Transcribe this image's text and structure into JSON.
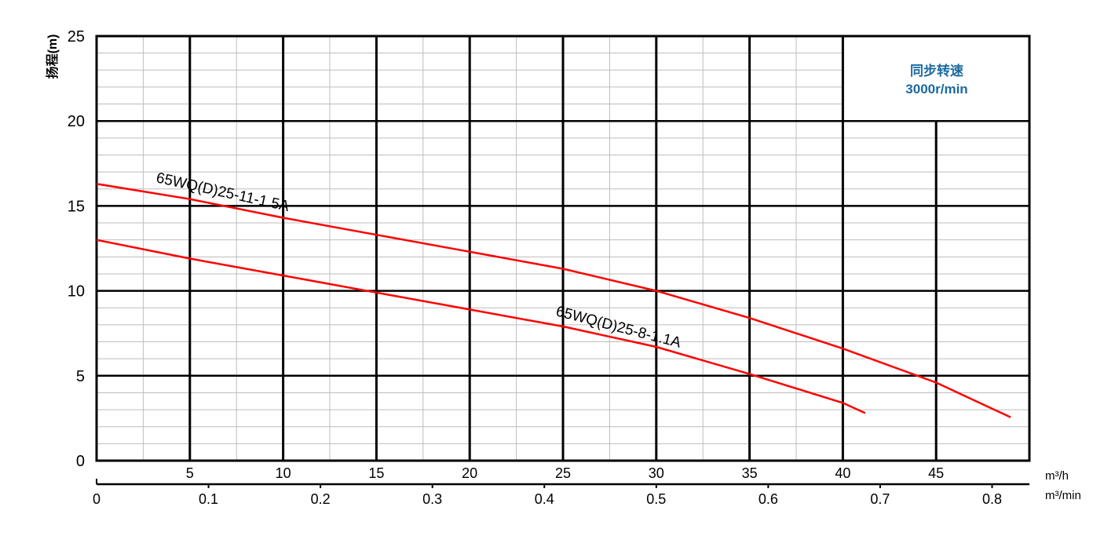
{
  "chart_data": {
    "type": "line",
    "title": "",
    "ylabel": "扬程(m)",
    "xlabel_primary": "m³/h",
    "xlabel_secondary": "m³/min",
    "xlim": [
      0,
      50
    ],
    "ylim": [
      0,
      25
    ],
    "x_ticks": [
      5,
      10,
      15,
      20,
      25,
      30,
      35,
      40,
      45
    ],
    "x_secondary_ticks": [
      "0",
      "0.1",
      "0.2",
      "0.3",
      "0.4",
      "0.5",
      "0.6",
      "0.7",
      "0.8"
    ],
    "y_ticks": [
      0,
      5,
      10,
      15,
      20,
      25
    ],
    "grid": true,
    "annotation": {
      "line1": "同步转速",
      "line2": "3000r/min",
      "color": "#1a6aa0"
    },
    "series": [
      {
        "name": "65WQ(D)25-11-1.5A",
        "color": "#ff0000",
        "x": [
          0,
          5,
          10,
          15,
          20,
          25,
          30,
          35,
          40,
          45,
          49.0
        ],
        "y": [
          16.3,
          15.4,
          14.3,
          13.3,
          12.3,
          11.3,
          10.0,
          8.4,
          6.6,
          4.6,
          2.55
        ]
      },
      {
        "name": "65WQ(D)25-8-1.1A",
        "color": "#ff0000",
        "x": [
          0,
          5,
          10,
          15,
          20,
          25,
          30,
          35,
          40,
          41.2
        ],
        "y": [
          13.0,
          11.9,
          10.9,
          9.9,
          8.9,
          7.9,
          6.7,
          5.1,
          3.4,
          2.8
        ]
      }
    ]
  }
}
